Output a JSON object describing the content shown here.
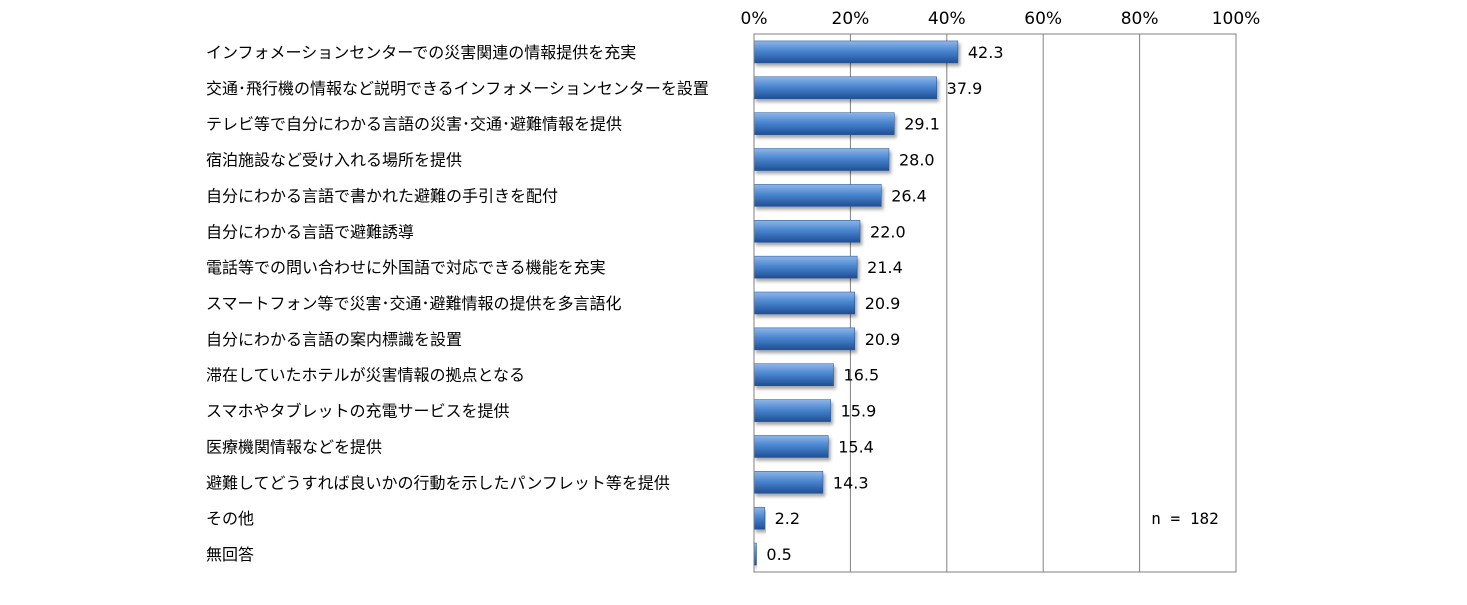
{
  "chart_data": {
    "type": "bar",
    "orientation": "horizontal",
    "categories": [
      "インフォメーションセンターでの災害関連の情報提供を充実",
      "交通･飛行機の情報など説明できるインフォメーションセンターを設置",
      "テレビ等で自分にわかる言語の災害･交通･避難情報を提供",
      "宿泊施設など受け入れる場所を提供",
      "自分にわかる言語で書かれた避難の手引きを配付",
      "自分にわかる言語で避難誘導",
      "電話等での問い合わせに外国語で対応できる機能を充実",
      "スマートフォン等で災害･交通･避難情報の提供を多言語化",
      "自分にわかる言語の案内標識を設置",
      "滞在していたホテルが災害情報の拠点となる",
      "スマホやタブレットの充電サービスを提供",
      "医療機関情報などを提供",
      "避難してどうすれば良いかの行動を示したパンフレット等を提供",
      "その他",
      "無回答"
    ],
    "values": [
      42.3,
      37.9,
      29.1,
      28.0,
      26.4,
      22.0,
      21.4,
      20.9,
      20.9,
      16.5,
      15.9,
      15.4,
      14.3,
      2.2,
      0.5
    ],
    "value_labels": [
      "42.3",
      "37.9",
      "29.1",
      "28.0",
      "26.4",
      "22.0",
      "21.4",
      "20.9",
      "20.9",
      "16.5",
      "15.9",
      "15.4",
      "14.3",
      "2.2",
      "0.5"
    ],
    "x_ticks": [
      "0%",
      "20%",
      "40%",
      "60%",
      "80%",
      "100%"
    ],
    "xlim": [
      0,
      100
    ],
    "grid": true,
    "axis_position": "top",
    "note": "n = 182",
    "bar_color": "#3f7cc8"
  }
}
